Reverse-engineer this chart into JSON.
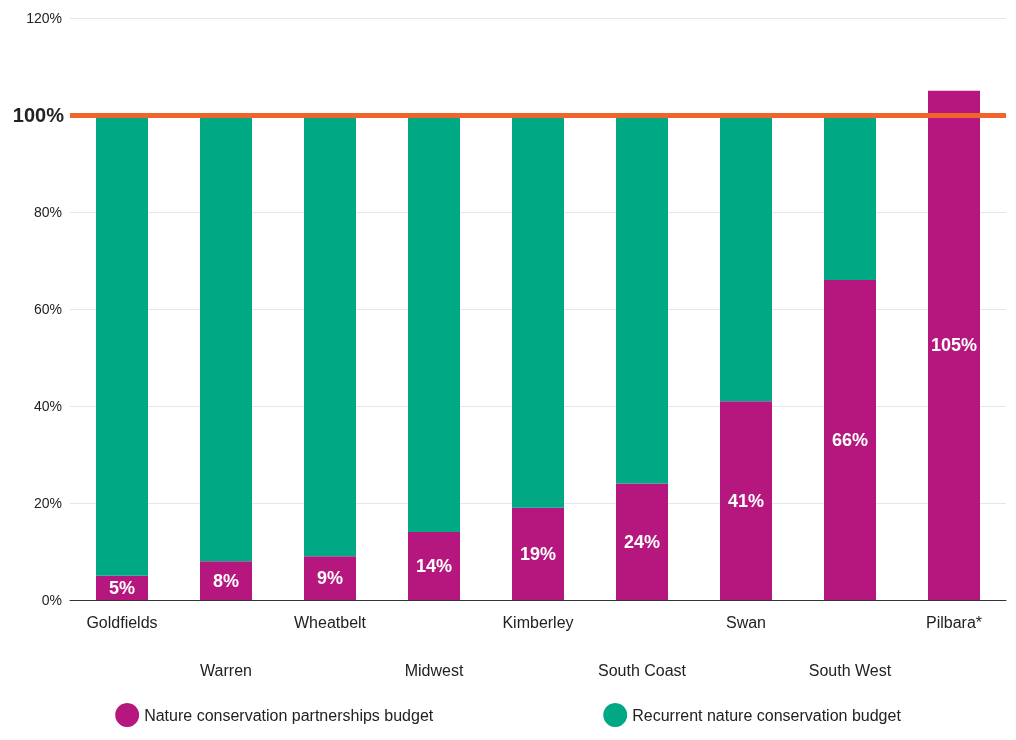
{
  "chart_data": {
    "type": "bar",
    "stacked": true,
    "categories": [
      "Goldfields",
      "Warren",
      "Wheatbelt",
      "Midwest",
      "Kimberley",
      "South Coast",
      "Swan",
      "South West",
      "Pilbara*"
    ],
    "series": [
      {
        "name": "Nature conservation partnerships budget",
        "color": "#b5177f",
        "values": [
          5,
          8,
          9,
          14,
          19,
          24,
          41,
          66,
          105
        ],
        "value_labels": [
          "5%",
          "8%",
          "9%",
          "14%",
          "19%",
          "24%",
          "41%",
          "66%",
          "105%"
        ]
      },
      {
        "name": "Recurrent nature conservation budget",
        "color": "#00a884",
        "values": [
          95,
          92,
          91,
          86,
          81,
          76,
          59,
          34,
          null
        ]
      }
    ],
    "ylim": [
      0,
      120
    ],
    "yticks": [
      {
        "value": 0,
        "label": "0%"
      },
      {
        "value": 20,
        "label": "20%"
      },
      {
        "value": 40,
        "label": "40%"
      },
      {
        "value": 60,
        "label": "60%"
      },
      {
        "value": 80,
        "label": "80%"
      },
      {
        "value": 100,
        "label": null
      },
      {
        "value": 120,
        "label": "120%"
      }
    ],
    "ref_lines": [
      {
        "axis": "y",
        "value": 100,
        "label": "100%",
        "color": "#f0632a",
        "line_style": "solid"
      }
    ],
    "grid": "y",
    "legend": "bottom"
  }
}
